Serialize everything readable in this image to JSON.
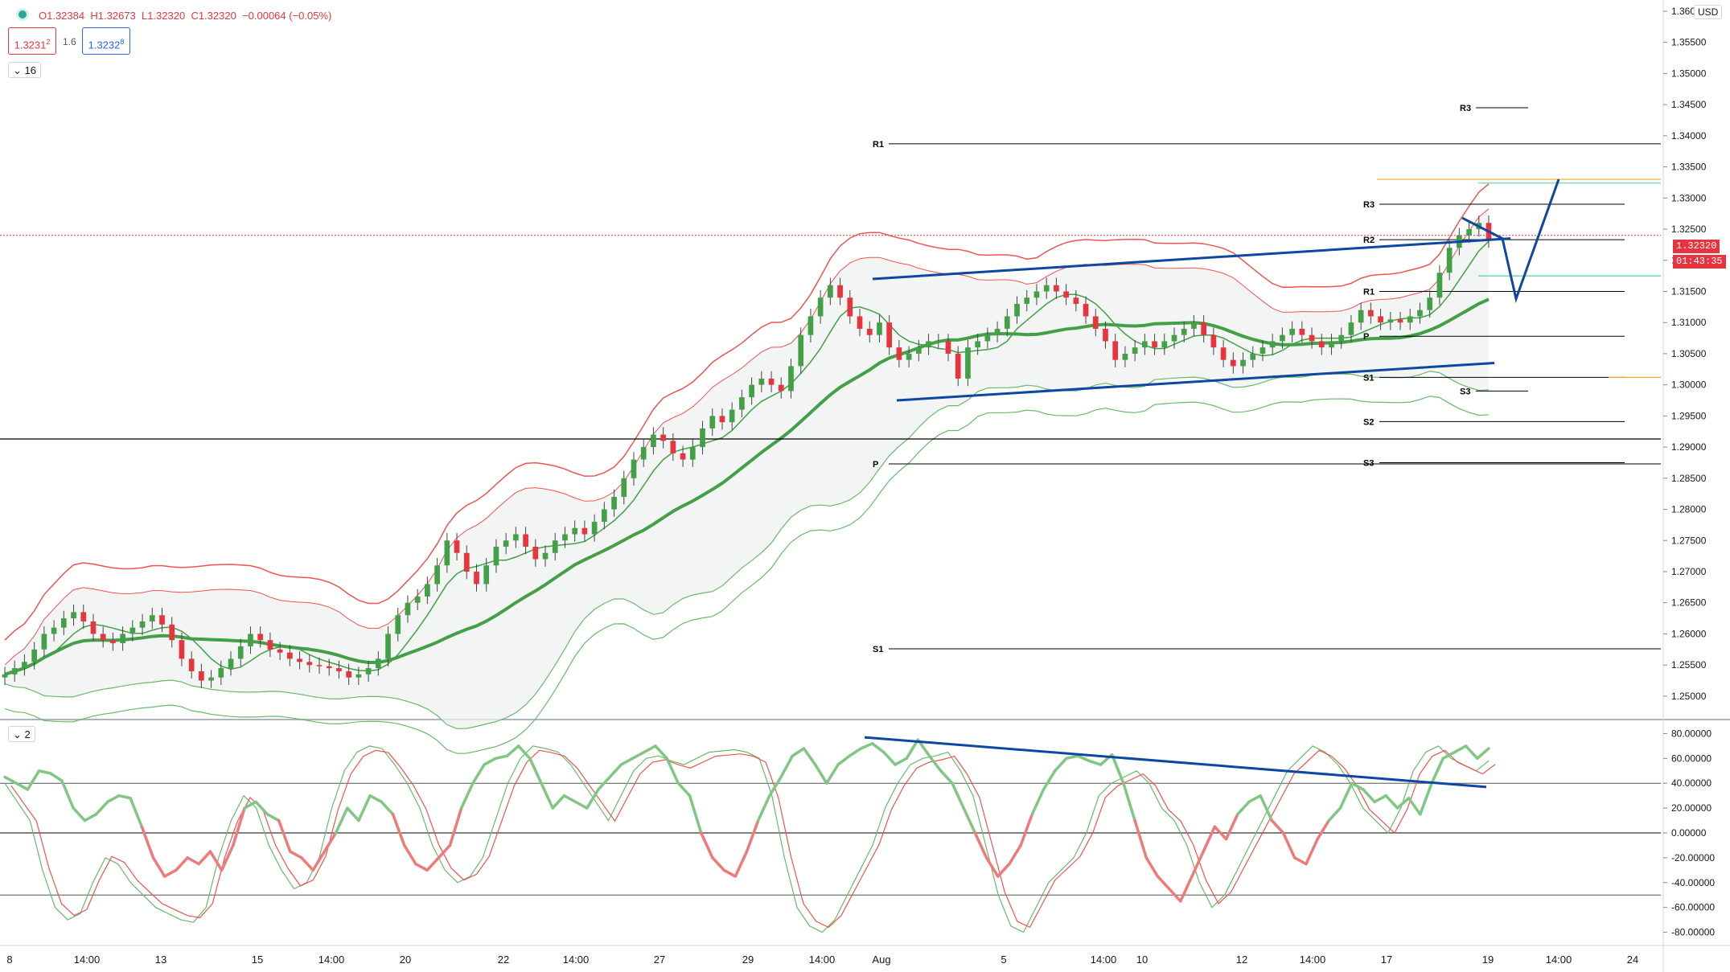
{
  "header": {
    "open": "O1.32384",
    "high": "H1.32673",
    "low": "L1.32320",
    "close": "C1.32320",
    "change": "−0.00064 (−0.05%)",
    "bid": "1.3231",
    "bid_sup": "2",
    "spread": "1.6",
    "ask": "1.3232",
    "ask_sup": "8",
    "indicator_count": "16",
    "panel2_count": "2"
  },
  "currency_label": "USD",
  "last_price_label": "1.32320",
  "countdown_label": "01:43:35",
  "price_axis_ticks": [
    "1.36000",
    "1.35500",
    "1.35000",
    "1.34500",
    "1.34000",
    "1.33500",
    "1.33000",
    "1.32500",
    "1.32000",
    "1.31500",
    "1.31000",
    "1.30500",
    "1.30000",
    "1.29500",
    "1.29000",
    "1.28500",
    "1.28000",
    "1.27500",
    "1.27000",
    "1.26500",
    "1.26000",
    "1.25500",
    "1.25000"
  ],
  "osc_axis_ticks": [
    "80.00000",
    "60.00000",
    "40.00000",
    "20.00000",
    "0.00000",
    "-20.00000",
    "-40.00000",
    "-60.00000",
    "-80.00000"
  ],
  "time_axis_ticks": [
    "8",
    "14:00",
    "13",
    "15",
    "14:00",
    "20",
    "22",
    "14:00",
    "27",
    "29",
    "14:00",
    "Aug",
    "5",
    "14:00",
    "10",
    "12",
    "14:00",
    "17",
    "19",
    "14:00",
    "24"
  ],
  "pivot_labels": [
    "R1",
    "P",
    "S1",
    "R3",
    "R2",
    "R1",
    "P",
    "S1",
    "S2",
    "S3",
    "R3",
    "S3"
  ],
  "colors": {
    "bull": "#43a047",
    "bear": "#e8343f",
    "band_upper": "#ef5350",
    "band_lower": "#66bb6a",
    "trend": "#0d47a1",
    "pivot": "#000000",
    "last_price": "#e8343f"
  },
  "chart_data": [
    {
      "type": "candlestick",
      "title": "",
      "xlabel": "",
      "ylabel": "",
      "ylim": [
        1.2465,
        1.3618
      ],
      "x_categories": [
        "Jul 8",
        "Jul 13",
        "Jul 15",
        "Jul 20",
        "Jul 22",
        "Jul 27",
        "Jul 29",
        "Aug 3",
        "Aug 5",
        "Aug 10",
        "Aug 12",
        "Aug 17",
        "Aug 19",
        "Aug 24"
      ],
      "close_series": [
        1.2535,
        1.2545,
        1.2555,
        1.2575,
        1.26,
        1.261,
        1.2625,
        1.2635,
        1.262,
        1.26,
        1.259,
        1.2585,
        1.26,
        1.261,
        1.262,
        1.263,
        1.2615,
        1.259,
        1.256,
        1.254,
        1.2525,
        1.253,
        1.2545,
        1.256,
        1.258,
        1.26,
        1.259,
        1.2575,
        1.257,
        1.256,
        1.2555,
        1.255,
        1.2548,
        1.2545,
        1.254,
        1.253,
        1.2535,
        1.2545,
        1.256,
        1.26,
        1.263,
        1.265,
        1.266,
        1.268,
        1.271,
        1.275,
        1.273,
        1.27,
        1.268,
        1.271,
        1.274,
        1.275,
        1.276,
        1.274,
        1.272,
        1.273,
        1.275,
        1.276,
        1.277,
        1.276,
        1.278,
        1.28,
        1.282,
        1.285,
        1.288,
        1.29,
        1.292,
        1.291,
        1.289,
        1.288,
        1.29,
        1.293,
        1.295,
        1.294,
        1.296,
        1.298,
        1.3,
        1.301,
        1.3,
        1.299,
        1.303,
        1.308,
        1.311,
        1.314,
        1.316,
        1.314,
        1.311,
        1.309,
        1.308,
        1.31,
        1.306,
        1.304,
        1.305,
        1.306,
        1.307,
        1.307,
        1.305,
        1.301,
        1.306,
        1.307,
        1.308,
        1.309,
        1.311,
        1.313,
        1.314,
        1.315,
        1.316,
        1.315,
        1.314,
        1.313,
        1.311,
        1.309,
        1.307,
        1.304,
        1.305,
        1.306,
        1.307,
        1.306,
        1.307,
        1.308,
        1.309,
        1.31,
        1.308,
        1.306,
        1.304,
        1.303,
        1.304,
        1.305,
        1.306,
        1.307,
        1.308,
        1.309,
        1.308,
        1.307,
        1.306,
        1.307,
        1.308,
        1.31,
        1.312,
        1.311,
        1.31,
        1.3105,
        1.31,
        1.311,
        1.312,
        1.314,
        1.318,
        1.322,
        1.324,
        1.325,
        1.326,
        1.3232
      ],
      "oscillator": {
        "ylim": [
          -90,
          90
        ],
        "levels": [
          40,
          0,
          -50
        ],
        "main_series": [
          45,
          40,
          35,
          50,
          48,
          42,
          20,
          10,
          15,
          25,
          30,
          28,
          5,
          -20,
          -35,
          -30,
          -20,
          -25,
          -15,
          -30,
          -10,
          20,
          25,
          15,
          10,
          -15,
          -20,
          -30,
          -15,
          0,
          20,
          10,
          30,
          25,
          15,
          -10,
          -25,
          -30,
          -20,
          -10,
          20,
          40,
          55,
          60,
          62,
          70,
          60,
          40,
          20,
          30,
          25,
          20,
          35,
          45,
          55,
          60,
          65,
          70,
          60,
          40,
          30,
          0,
          -20,
          -30,
          -35,
          -15,
          10,
          30,
          45,
          62,
          68,
          55,
          40,
          55,
          62,
          68,
          72,
          65,
          55,
          60,
          75,
          62,
          50,
          40,
          20,
          0,
          -20,
          -35,
          -25,
          -10,
          15,
          35,
          50,
          60,
          62,
          58,
          55,
          63,
          40,
          10,
          -20,
          -35,
          -45,
          -55,
          -35,
          -15,
          5,
          -5,
          15,
          25,
          30,
          10,
          0,
          -20,
          -25,
          -5,
          10,
          20,
          40,
          35,
          25,
          30,
          20,
          28,
          15,
          40,
          60,
          65,
          70,
          60,
          68
        ],
        "signal_series": [
          40,
          25,
          10,
          -30,
          -60,
          -70,
          -65,
          -40,
          -20,
          -25,
          -40,
          -50,
          -60,
          -65,
          -70,
          -72,
          -60,
          -20,
          10,
          30,
          20,
          -10,
          -30,
          -45,
          -40,
          -20,
          20,
          50,
          65,
          70,
          68,
          55,
          40,
          20,
          -10,
          -30,
          -40,
          -35,
          -20,
          10,
          40,
          60,
          70,
          68,
          65,
          55,
          40,
          25,
          10,
          30,
          50,
          60,
          62,
          58,
          55,
          60,
          65,
          66,
          67,
          65,
          60,
          30,
          -20,
          -60,
          -75,
          -80,
          -70,
          -50,
          -30,
          -10,
          20,
          40,
          55,
          60,
          62,
          65,
          50,
          30,
          -10,
          -50,
          -75,
          -80,
          -60,
          -40,
          -30,
          -20,
          0,
          30,
          40,
          45,
          50,
          40,
          20,
          10,
          -10,
          -40,
          -60,
          -50,
          -30,
          -10,
          10,
          30,
          50,
          60,
          70,
          65,
          55,
          40,
          20,
          10,
          0,
          20,
          50,
          65,
          70,
          60,
          55,
          50,
          58
        ]
      },
      "trendlines": "upper and lower channel lines, projected zigzag path, oscillator divergence line"
    }
  ]
}
